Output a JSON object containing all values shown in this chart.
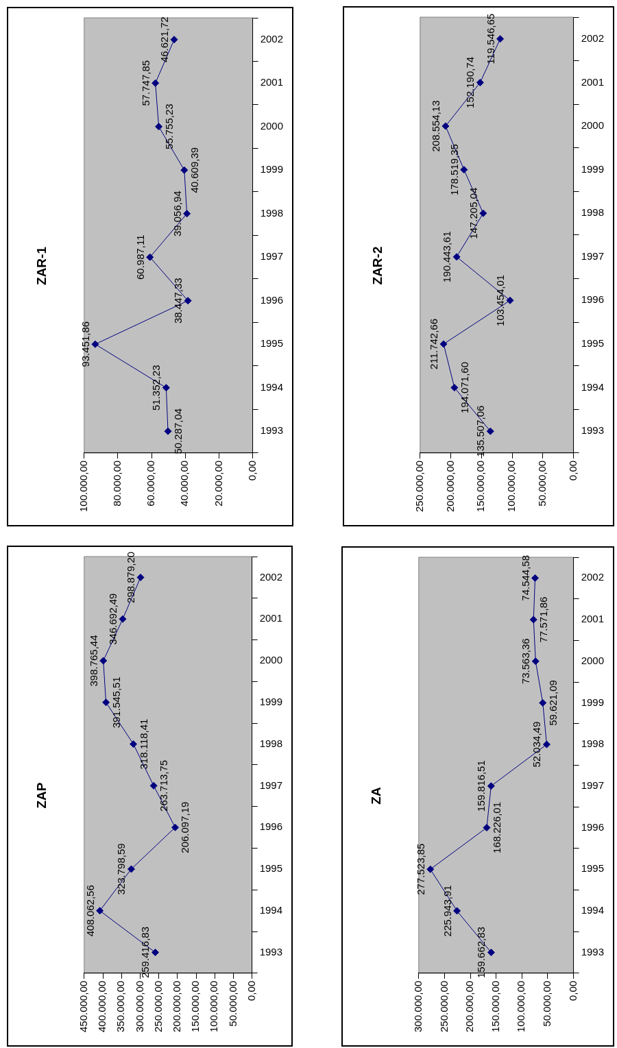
{
  "chart_data": [
    {
      "type": "line",
      "title": "ZAR-1",
      "orientation": "horizontal",
      "categories": [
        "2002",
        "2001",
        "2000",
        "1999",
        "1998",
        "1997",
        "1996",
        "1995",
        "1994",
        "1993"
      ],
      "values": [
        46621.72,
        57747.85,
        55755.23,
        40609.39,
        39056.94,
        60987.11,
        38447.33,
        93451.86,
        51352.23,
        50287.04
      ],
      "value_labels": [
        "46.621,72",
        "57.747,85",
        "55.755,23",
        "40.609,39",
        "39.056,94",
        "60.987,11",
        "38.447,33",
        "93.451,86",
        "51.352,23",
        "50.287,04"
      ],
      "color": "#000080",
      "marker": "diamond",
      "xlim": [
        100000,
        0
      ],
      "xticks": [
        {
          "value": 100000,
          "label": "100.000,00"
        },
        {
          "value": 80000,
          "label": "80.000,00"
        },
        {
          "value": 60000,
          "label": "60.000,00"
        },
        {
          "value": 40000,
          "label": "40.000,00"
        },
        {
          "value": 20000,
          "label": "20.000,00"
        },
        {
          "value": 0,
          "label": "0,00"
        }
      ],
      "grid": false,
      "legend": false
    },
    {
      "type": "line",
      "title": "ZAR-2",
      "orientation": "horizontal",
      "categories": [
        "2002",
        "2001",
        "2000",
        "1999",
        "1998",
        "1997",
        "1996",
        "1995",
        "1994",
        "1993"
      ],
      "values": [
        119546.65,
        152190.74,
        208554.13,
        178519.35,
        147205.04,
        190443.61,
        103454.01,
        211742.66,
        194071.6,
        135507.06
      ],
      "value_labels": [
        "119.546,65",
        "152.190,74",
        "208.554,13",
        "178.519,35",
        "147.205,04",
        "190.443,61",
        "103.454,01",
        "211.742,66",
        "194.071,60",
        "135.507,06"
      ],
      "color": "#000080",
      "marker": "diamond",
      "xlim": [
        250000,
        0
      ],
      "xticks": [
        {
          "value": 250000,
          "label": "250.000,00"
        },
        {
          "value": 200000,
          "label": "200.000,00"
        },
        {
          "value": 150000,
          "label": "150.000,00"
        },
        {
          "value": 100000,
          "label": "100.000,00"
        },
        {
          "value": 50000,
          "label": "50.000,00"
        },
        {
          "value": 0,
          "label": "0,00"
        }
      ],
      "grid": false,
      "legend": false
    },
    {
      "type": "line",
      "title": "ZAP",
      "orientation": "horizontal",
      "categories": [
        "2002",
        "2001",
        "2000",
        "1999",
        "1998",
        "1997",
        "1996",
        "1995",
        "1994",
        "1993"
      ],
      "values": [
        298879.2,
        346692.49,
        398765.44,
        391545.51,
        318118.41,
        263713.75,
        206097.19,
        323798.59,
        408062.56,
        259416.83
      ],
      "value_labels": [
        "298.879,20",
        "346.692,49",
        "398.765,44",
        "391.545,51",
        "318.118,41",
        "263.713,75",
        "206.097,19",
        "323.798,59",
        "408.062,56",
        "259.416,83"
      ],
      "color": "#000080",
      "marker": "diamond",
      "xlim": [
        450000,
        0
      ],
      "xticks": [
        {
          "value": 450000,
          "label": "450.000,00"
        },
        {
          "value": 400000,
          "label": "400.000,00"
        },
        {
          "value": 350000,
          "label": "350.000,00"
        },
        {
          "value": 300000,
          "label": "300.000,00"
        },
        {
          "value": 250000,
          "label": "250.000,00"
        },
        {
          "value": 200000,
          "label": "200.000,00"
        },
        {
          "value": 150000,
          "label": "150.000,00"
        },
        {
          "value": 100000,
          "label": "100.000,00"
        },
        {
          "value": 50000,
          "label": "50.000,00"
        },
        {
          "value": 0,
          "label": "0,00"
        }
      ],
      "grid": false,
      "legend": false
    },
    {
      "type": "line",
      "title": "ZA",
      "orientation": "horizontal",
      "categories": [
        "2002",
        "2001",
        "2000",
        "1999",
        "1998",
        "1997",
        "1996",
        "1995",
        "1994",
        "1993"
      ],
      "values": [
        74544.58,
        77571.86,
        73563.36,
        59621.09,
        52034.49,
        159816.51,
        168226.01,
        277523.85,
        225943.91,
        159662.83
      ],
      "value_labels": [
        "74.544,58",
        "77.571,86",
        "73.563,36",
        "59.621,09",
        "52.034,49",
        "159.816,51",
        "168.226,01",
        "277.523,85",
        "225.943,91",
        "159.662,83"
      ],
      "color": "#000080",
      "marker": "diamond",
      "xlim": [
        300000,
        0
      ],
      "xticks": [
        {
          "value": 300000,
          "label": "300.000,00"
        },
        {
          "value": 250000,
          "label": "250.000,00"
        },
        {
          "value": 200000,
          "label": "200.000,00"
        },
        {
          "value": 150000,
          "label": "150.000,00"
        },
        {
          "value": 100000,
          "label": "100.000,00"
        },
        {
          "value": 50000,
          "label": "50.000,00"
        },
        {
          "value": 0,
          "label": "0,00"
        }
      ],
      "grid": false,
      "legend": false
    }
  ]
}
